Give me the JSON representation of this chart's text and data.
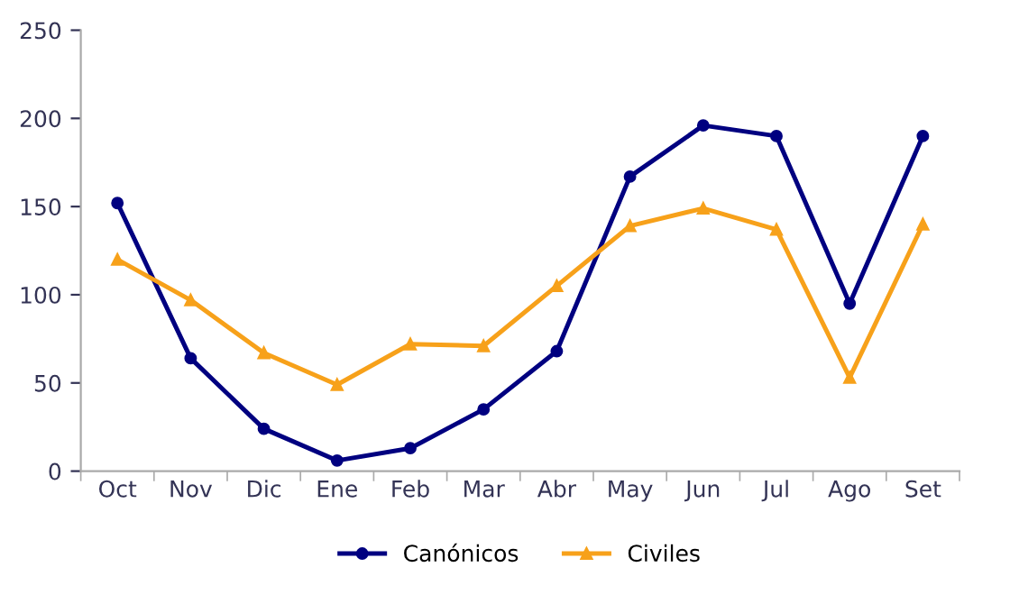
{
  "chart_data": {
    "type": "line",
    "categories": [
      "Oct",
      "Nov",
      "Dic",
      "Ene",
      "Feb",
      "Mar",
      "Abr",
      "May",
      "Jun",
      "Jul",
      "Ago",
      "Set"
    ],
    "series": [
      {
        "name": "Canónicos",
        "color": "#000080",
        "marker": "circle",
        "values": [
          152,
          64,
          24,
          6,
          13,
          35,
          68,
          167,
          196,
          190,
          95,
          190
        ]
      },
      {
        "name": "Civiles",
        "color": "#f7a11a",
        "marker": "triangle",
        "values": [
          120,
          97,
          67,
          49,
          72,
          71,
          105,
          139,
          149,
          137,
          53,
          140
        ]
      }
    ],
    "ylim": [
      0,
      250
    ],
    "yticks": [
      0,
      50,
      100,
      150,
      200,
      250
    ],
    "grid": false,
    "legend": "bottom",
    "line_style": "solid"
  }
}
